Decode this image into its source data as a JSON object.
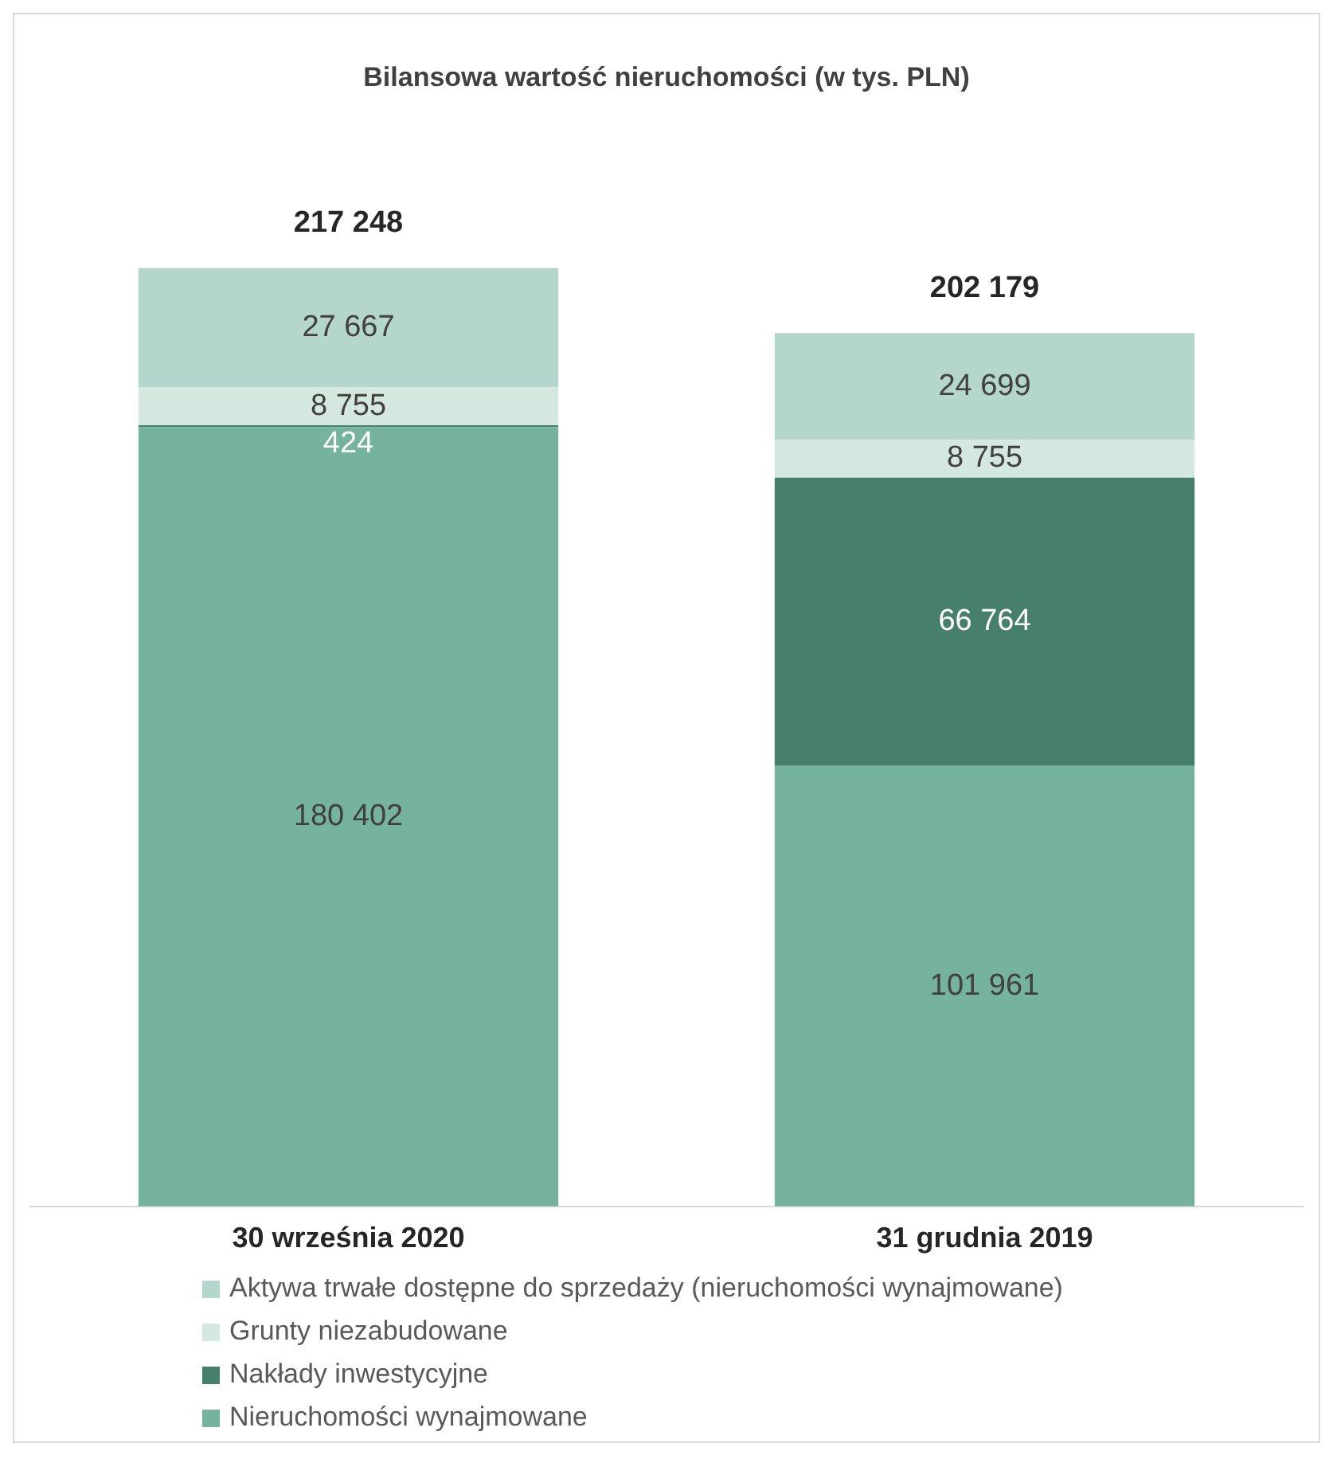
{
  "chart_data": {
    "type": "bar",
    "title": "Bilansowa wartość nieruchomości (w tys. PLN)",
    "categories": [
      "30 września 2020",
      "31 grudnia 2019"
    ],
    "stacked": true,
    "series": [
      {
        "name": "Nieruchomości wynajmowane",
        "color": "#76b39d",
        "values": [
          180402,
          101961
        ],
        "value_labels": [
          "180 402",
          "101 961"
        ]
      },
      {
        "name": "Nakłady inwestycyjne",
        "color": "#467f6a",
        "values": [
          424,
          66764
        ],
        "value_labels": [
          "424",
          "66 764"
        ]
      },
      {
        "name": "Grunty niezabudowane",
        "color": "#d5e8e0",
        "values": [
          8755,
          8755
        ],
        "value_labels": [
          "8 755",
          "8 755"
        ]
      },
      {
        "name": "Aktywa trwałe dostępne do sprzedaży (nieruchomości wynajmowane)",
        "color": "#b5d6cc",
        "values": [
          27667,
          24699
        ],
        "value_labels": [
          "27 667",
          "24 699"
        ]
      }
    ],
    "totals": [
      "217 248",
      "202 179"
    ],
    "grid": false,
    "legend": "bottom left"
  }
}
